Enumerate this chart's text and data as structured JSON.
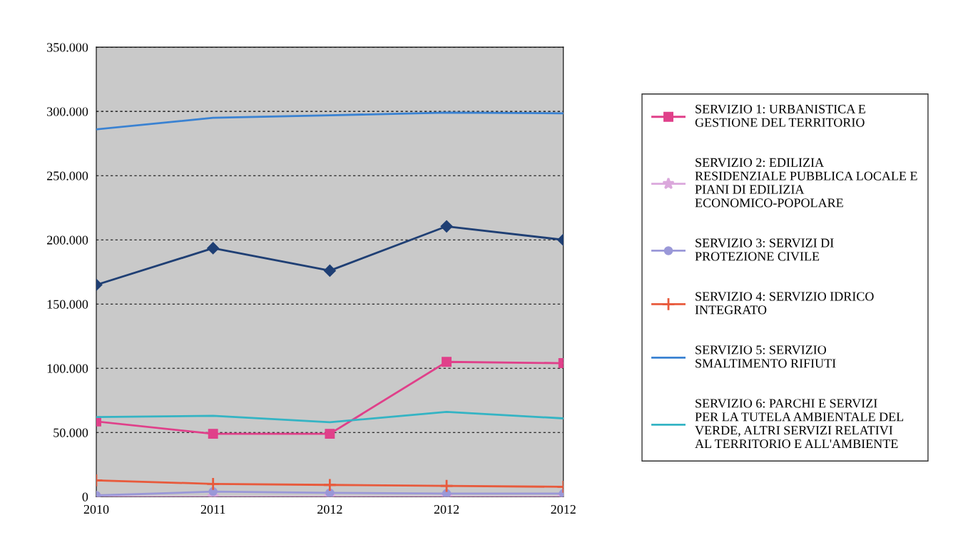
{
  "chart_data": {
    "type": "line",
    "categories": [
      "2010",
      "2011",
      "2012",
      "2012",
      "2012"
    ],
    "series": [
      {
        "name": "SERVIZIO 1: URBANISTICA E GESTIONE DEL TERRITORIO",
        "color": "#e0408a",
        "marker": "square",
        "values": [
          58600,
          49000,
          49000,
          105000,
          104000
        ]
      },
      {
        "name": "SERVIZIO 2: EDILIZIA RESIDENZIALE PUBBLICA LOCALE E PIANI DI EDILIZIA ECONOMICO-POPOLARE",
        "color": "#dba8dc",
        "marker": "star",
        "values": [
          0,
          0,
          0,
          0,
          0
        ]
      },
      {
        "name": "SERVIZIO 3: SERVIZI DI PROTEZIONE CIVILE",
        "color": "#9a98d8",
        "marker": "circle",
        "values": [
          1000,
          4000,
          3000,
          2500,
          2500
        ]
      },
      {
        "name": "SERVIZIO 4: SERVIZIO IDRICO INTEGRATO",
        "color": "#e85a3c",
        "marker": "cross",
        "values": [
          12700,
          10000,
          9200,
          8400,
          7700
        ]
      },
      {
        "name": "SERVIZIO 5: SERVIZIO SMALTIMENTO RIFIUTI",
        "color": "#3a82d2",
        "marker": "none",
        "values": [
          286000,
          295000,
          297000,
          299000,
          298500
        ]
      },
      {
        "name": "SERVIZIO 6: PARCHI E SERVIZI PER LA TUTELA AMBIENTALE DEL VERDE, ALTRI SERVIZI RELATIVI AL TERRITORIO E ALL'AMBIENTE",
        "color": "#34b4c4",
        "marker": "none",
        "values": [
          62000,
          63000,
          58000,
          66000,
          61000
        ]
      },
      {
        "color": "#1f3f74",
        "marker": "diamond",
        "values": [
          165000,
          193500,
          176000,
          210500,
          200000
        ]
      }
    ],
    "ylim": [
      0,
      350000
    ],
    "yticks": [
      {
        "value": 0,
        "label": "0"
      },
      {
        "value": 50000,
        "label": "50.000"
      },
      {
        "value": 100000,
        "label": "100.000"
      },
      {
        "value": 150000,
        "label": "150.000"
      },
      {
        "value": 200000,
        "label": "200.000"
      },
      {
        "value": 250000,
        "label": "250.000"
      },
      {
        "value": 300000,
        "label": "300.000"
      },
      {
        "value": 350000,
        "label": "350.000"
      }
    ],
    "grid": "y",
    "legend": "right",
    "line_style": "solid"
  }
}
